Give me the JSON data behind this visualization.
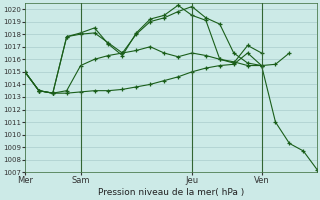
{
  "background_color": "#cceae7",
  "grid_color": "#aacccc",
  "line_color": "#1a5e1a",
  "xlabel": "Pression niveau de la mer( hPa )",
  "ylim": [
    1007,
    1020.5
  ],
  "yticks": [
    1007,
    1008,
    1009,
    1010,
    1011,
    1012,
    1013,
    1014,
    1015,
    1016,
    1017,
    1018,
    1019,
    1020
  ],
  "xtick_labels": [
    "Mer",
    "Sam",
    "Jeu",
    "Ven"
  ],
  "xtick_positions": [
    0,
    4,
    12,
    17
  ],
  "vline_positions": [
    4,
    12,
    17
  ],
  "series": [
    [
      1015.0,
      1013.5,
      1013.3,
      1013.5,
      1015.5,
      1016.0,
      1016.3,
      1016.5,
      1016.7,
      1017.0,
      1016.5,
      1016.2,
      1016.5,
      1016.3,
      1016.0,
      1015.8,
      1015.5,
      1015.5,
      1015.6,
      1016.5
    ],
    [
      1015.0,
      1013.5,
      1013.3,
      1017.8,
      1018.0,
      1018.1,
      1017.3,
      1016.5,
      1018.0,
      1019.0,
      1019.3,
      1019.8,
      1020.2,
      1019.3,
      1018.8,
      1016.5,
      1015.7,
      1015.5
    ],
    [
      1015.0,
      1013.5,
      1013.3,
      1017.8,
      1018.1,
      1018.5,
      1017.2,
      1016.3,
      1018.1,
      1019.2,
      1019.5,
      1020.3,
      1019.5,
      1019.1,
      1016.0,
      1015.7,
      1017.1,
      1016.5
    ],
    [
      1015.0,
      1013.5,
      1013.3,
      1013.3,
      1013.4,
      1013.5,
      1013.5,
      1013.6,
      1013.8,
      1014.0,
      1014.3,
      1014.6,
      1015.0,
      1015.3,
      1015.5,
      1015.6,
      1016.5,
      1015.5,
      1011.0,
      1009.3,
      1008.7,
      1007.2
    ]
  ],
  "x_series": [
    [
      0,
      1,
      2,
      3,
      4,
      5,
      6,
      7,
      8,
      9,
      10,
      11,
      12,
      13,
      14,
      15,
      16,
      17,
      18,
      19
    ],
    [
      0,
      1,
      2,
      3,
      4,
      5,
      6,
      7,
      8,
      9,
      10,
      11,
      12,
      13,
      14,
      15,
      16,
      17
    ],
    [
      0,
      1,
      2,
      3,
      4,
      5,
      6,
      7,
      8,
      9,
      10,
      11,
      12,
      13,
      14,
      15,
      16,
      17
    ],
    [
      0,
      1,
      2,
      3,
      4,
      5,
      6,
      7,
      8,
      9,
      10,
      11,
      12,
      13,
      14,
      15,
      16,
      17,
      18,
      19,
      20,
      21
    ]
  ]
}
